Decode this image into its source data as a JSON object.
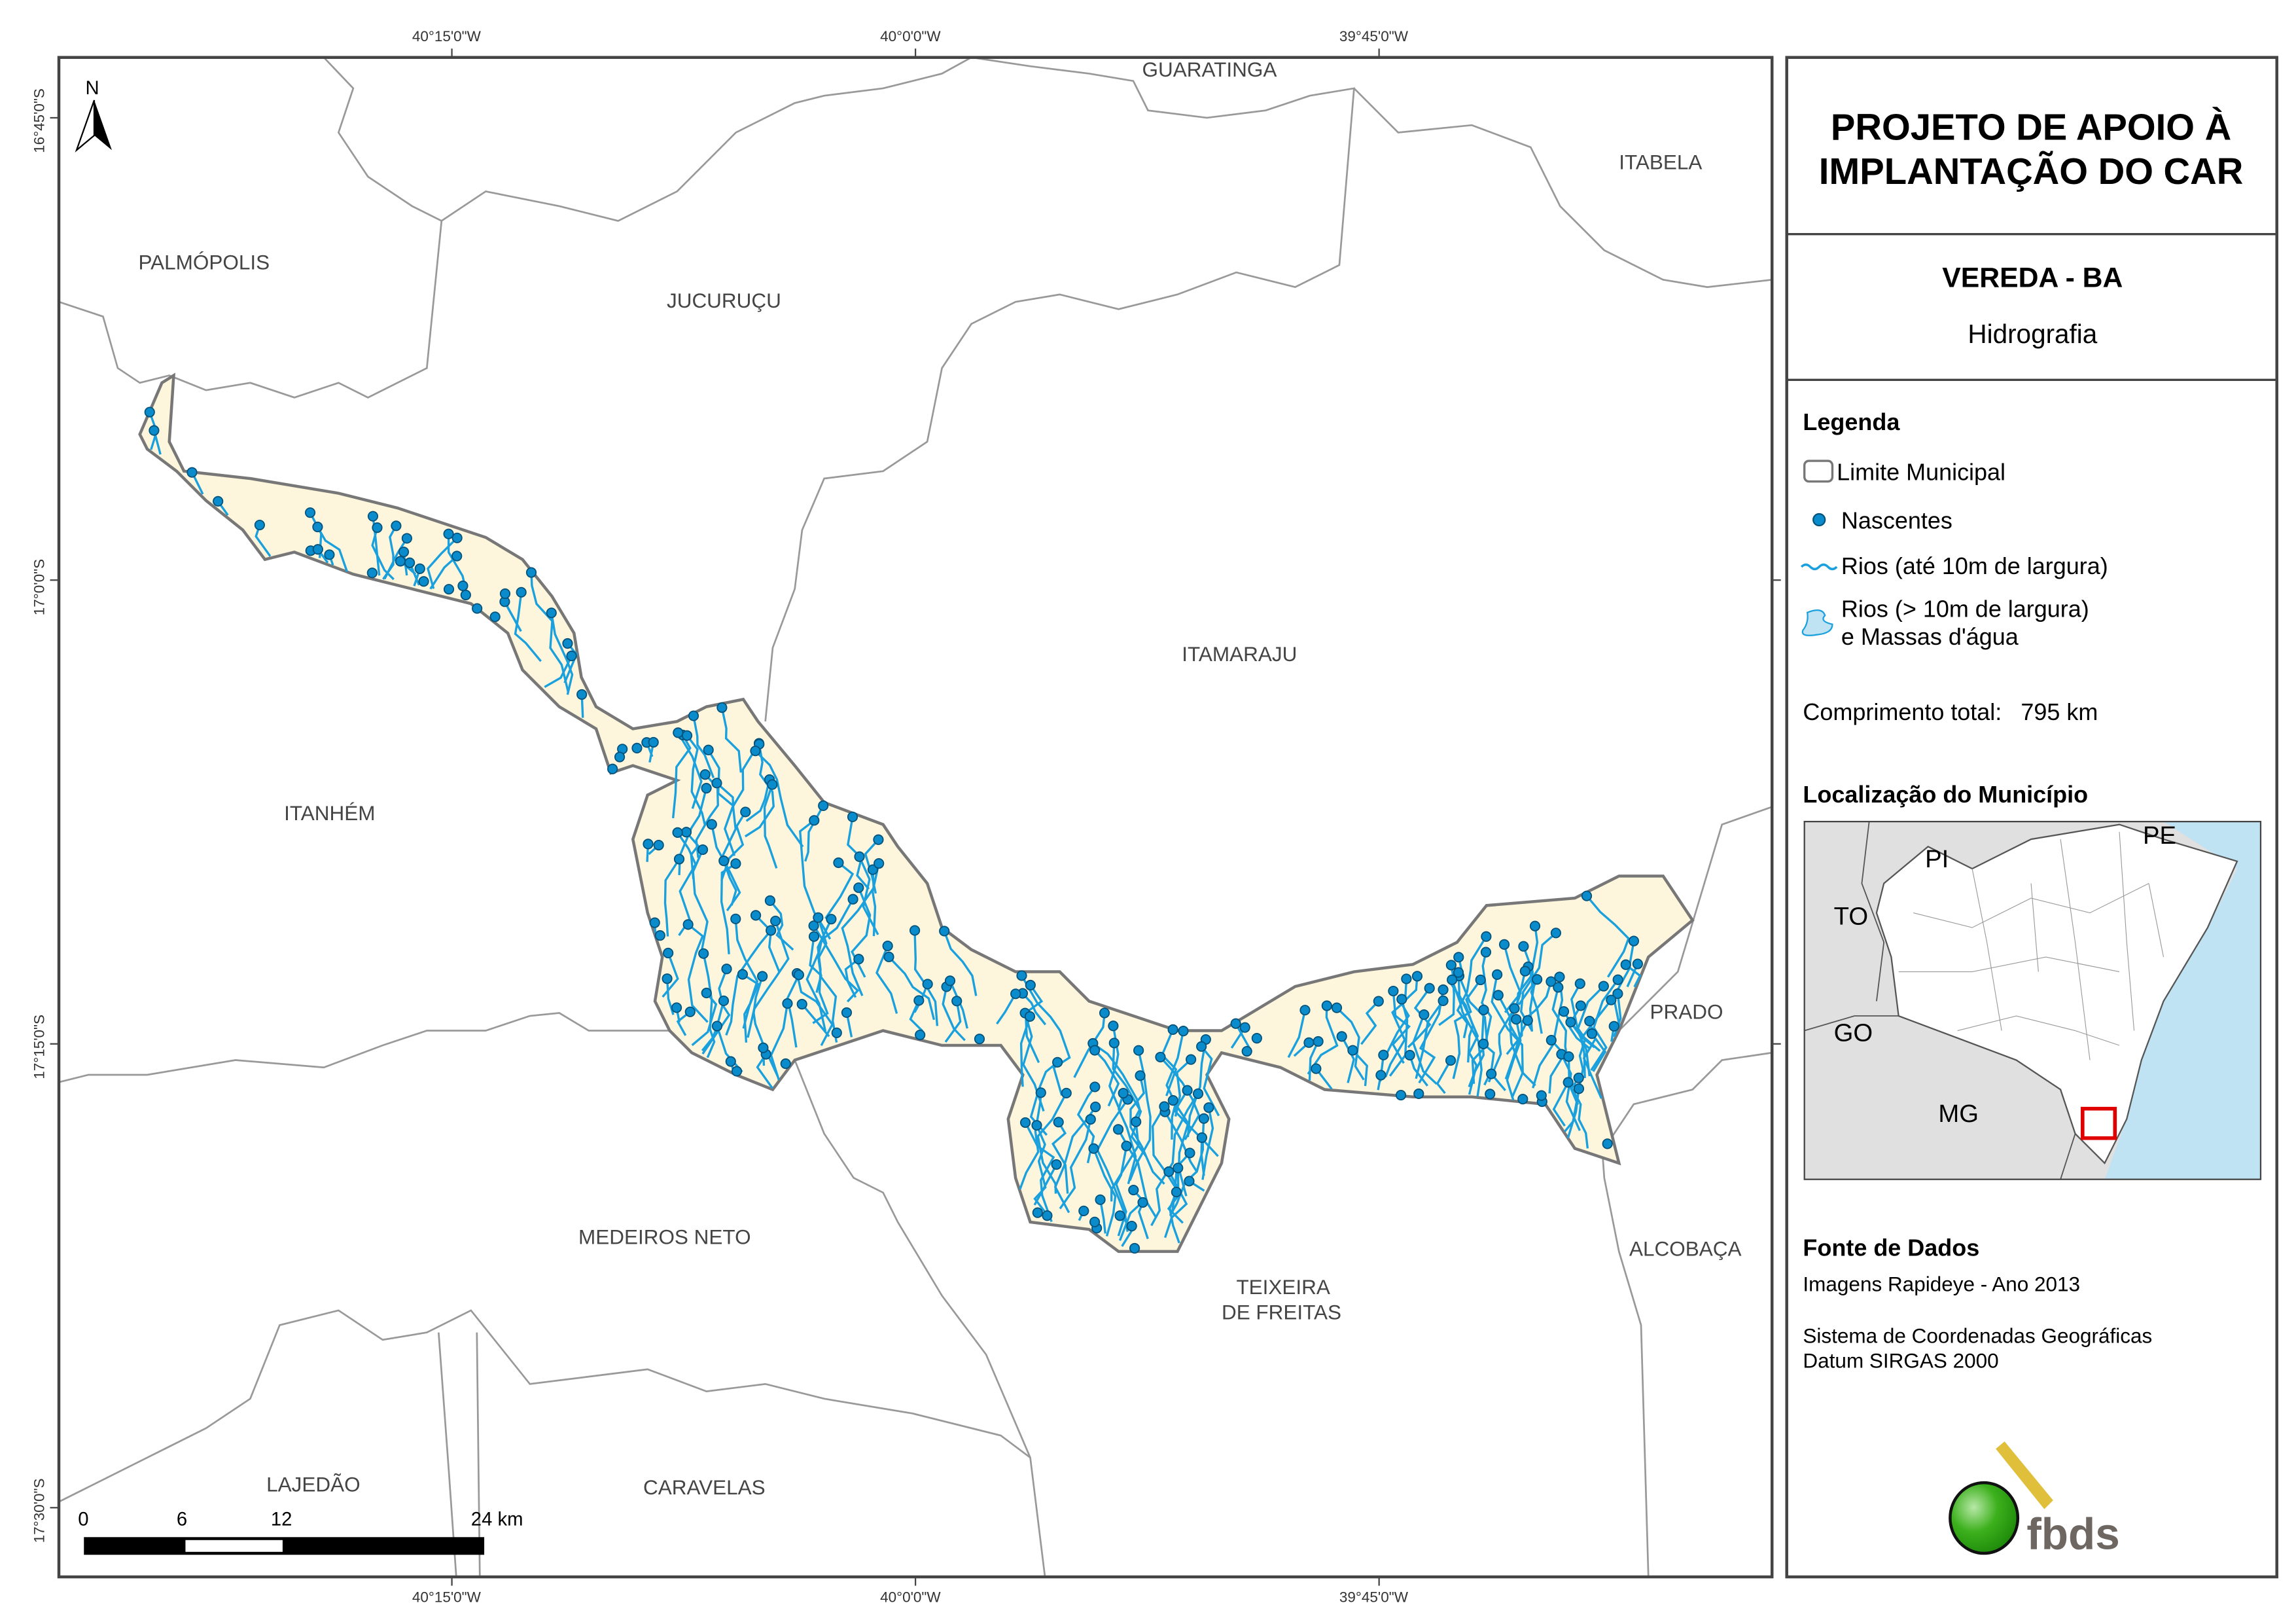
{
  "title": {
    "line1": "PROJETO DE APOIO À",
    "line2": "IMPLANTAÇÃO DO CAR"
  },
  "subtitle": {
    "municipality": "VEREDA - BA",
    "theme": "Hidrografia"
  },
  "legend": {
    "heading": "Legenda",
    "items": [
      "Limite Municipal",
      "Nascentes",
      "Rios (até 10m de largura)",
      "Rios (> 10m de largura)",
      "e Massas d'água"
    ],
    "total_label": "Comprimento total:",
    "total_value": "795 km"
  },
  "location": {
    "heading": "Localização do Município",
    "states": [
      "PI",
      "PE",
      "TO",
      "GO",
      "MG"
    ]
  },
  "sources": {
    "heading": "Fonte de Dados",
    "line1": "Imagens Rapideye - Ano 2013",
    "line2": "Sistema de Coordenadas Geográficas",
    "line3": "Datum SIRGAS 2000"
  },
  "logo": {
    "text": "fbds"
  },
  "north": "N",
  "coords": {
    "lon": [
      "40°15'0\"W",
      "40°0'0\"W",
      "39°45'0\"W"
    ],
    "lat": [
      "16°45'0\"S",
      "17°0'0\"S",
      "17°15'0\"S",
      "17°30'0\"S"
    ]
  },
  "scale": {
    "ticks": [
      "0",
      "6",
      "12",
      "24 km"
    ]
  },
  "municipalities": [
    "GUARATINGA",
    "ITABELA",
    "PALMÓPOLIS",
    "JUCURUÇU",
    "ITAMARAJU",
    "ITANHÉM",
    "PRADO",
    "MEDEIROS NETO",
    "ALCOBAÇA",
    "TEIXEIRA",
    "DE FREITAS",
    "LAJEDÃO",
    "CARAVELAS"
  ],
  "colors": {
    "area": "#fdf6dc",
    "river": "#1aa0dc",
    "spring": "#0a8ccc",
    "boundary": "#999999",
    "ocean": "#bfe3f3"
  }
}
